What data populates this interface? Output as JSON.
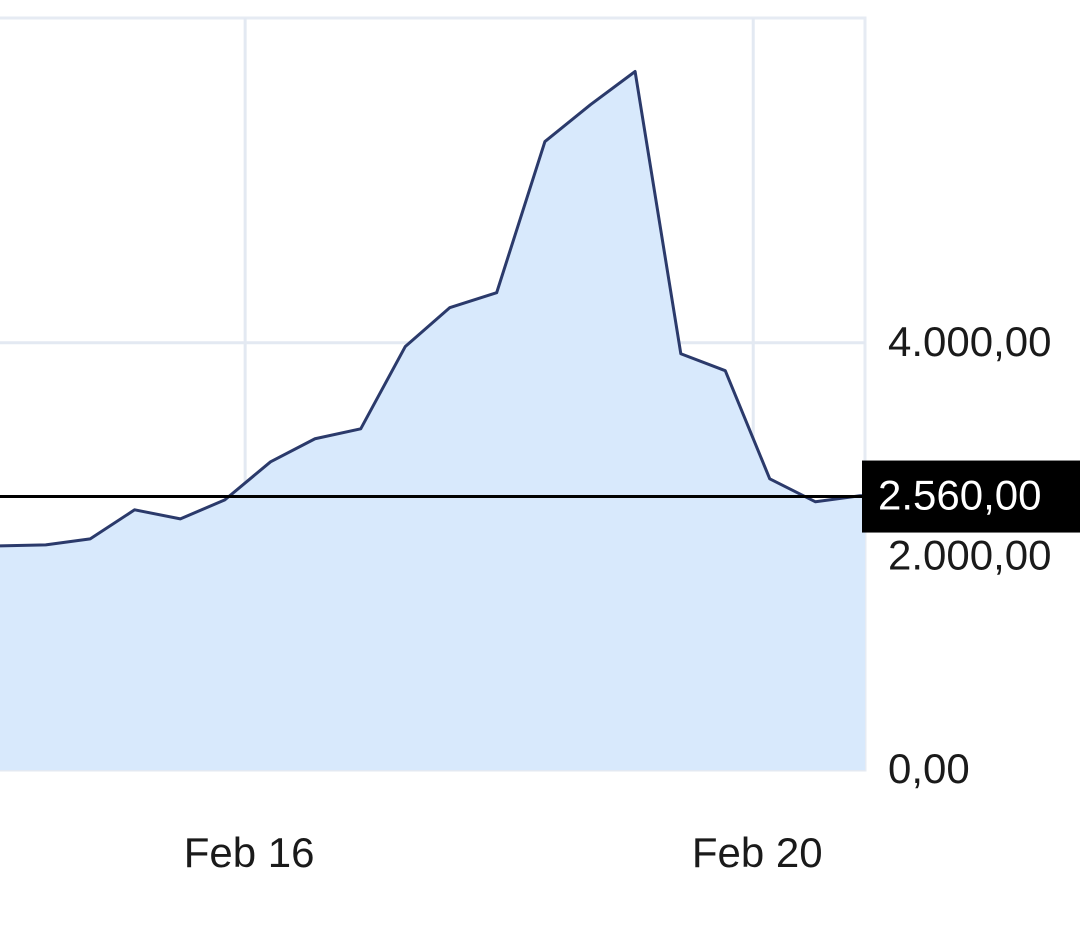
{
  "chart_data": {
    "type": "area",
    "x": [
      14.07,
      14.43,
      14.78,
      15.13,
      15.49,
      15.84,
      16.2,
      16.55,
      16.91,
      17.26,
      17.61,
      17.98,
      18.36,
      18.72,
      19.07,
      19.43,
      19.78,
      20.13,
      20.49,
      20.84
    ],
    "series": [
      {
        "color": "#2b3a6b",
        "values": [
          2098,
          2108,
          2164,
          2436,
          2351,
          2529,
          2885,
          3101,
          3194,
          3963,
          4328,
          4468,
          5883,
          6230,
          6539,
          3897,
          3738,
          2726,
          2511,
          2567
        ]
      }
    ],
    "fill_color": "#d8e9fc",
    "xlim": [
      14.07,
      20.88
    ],
    "xticks": [
      {
        "value": 16,
        "label": "Feb 16"
      },
      {
        "value": 20,
        "label": "Feb 20"
      }
    ],
    "ylim": [
      0,
      7040
    ],
    "yticks": [
      {
        "value": 0,
        "label": "0,00"
      },
      {
        "value": 2000,
        "label": "2.000,00"
      },
      {
        "value": 4000,
        "label": "4.000,00"
      }
    ],
    "grid": true,
    "reference_line": {
      "value": 2560,
      "label": "2.560,00"
    }
  }
}
